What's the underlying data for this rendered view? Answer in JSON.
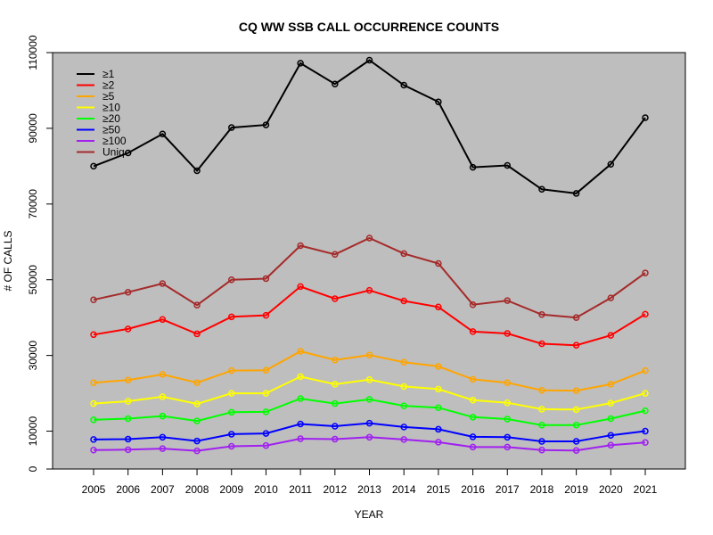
{
  "chart_data": {
    "type": "line",
    "title": "CQ WW SSB CALL OCCURRENCE COUNTS",
    "xlabel": "YEAR",
    "ylabel": "# OF CALLS",
    "x": [
      "2005",
      "2006",
      "2007",
      "2008",
      "2009",
      "2010",
      "2011",
      "2012",
      "2013",
      "2014",
      "2015",
      "2016",
      "2017",
      "2018",
      "2019",
      "2020",
      "2021"
    ],
    "ylim": [
      0,
      110000
    ],
    "yticks": [
      "0",
      "10000",
      "30000",
      "50000",
      "70000",
      "90000",
      "110000"
    ],
    "background": "#bebebe",
    "grid": false,
    "legend_position": "top-left",
    "series": [
      {
        "name": "≥1",
        "color": "#000000",
        "values": [
          80000,
          83500,
          88500,
          78800,
          90200,
          90900,
          107200,
          101700,
          108000,
          101400,
          97000,
          79700,
          80200,
          73900,
          72800,
          80500,
          92800
        ]
      },
      {
        "name": "≥2",
        "color": "#ff0000",
        "values": [
          35500,
          37000,
          39500,
          35700,
          40200,
          40600,
          48200,
          45000,
          47200,
          44400,
          42800,
          36300,
          35800,
          33100,
          32700,
          35300,
          40900
        ]
      },
      {
        "name": "≥5",
        "color": "#ffa500",
        "values": [
          22800,
          23500,
          25000,
          22800,
          26000,
          26100,
          31100,
          28800,
          30100,
          28200,
          27100,
          23700,
          22800,
          20800,
          20700,
          22400,
          26000
        ]
      },
      {
        "name": "≥10",
        "color": "#ffff00",
        "values": [
          17300,
          17900,
          19100,
          17200,
          20000,
          20000,
          24400,
          22400,
          23600,
          21800,
          21100,
          18200,
          17500,
          15800,
          15700,
          17400,
          20000
        ]
      },
      {
        "name": "≥20",
        "color": "#00ff00",
        "values": [
          13000,
          13300,
          14000,
          12700,
          15000,
          15100,
          18600,
          17300,
          18400,
          16700,
          16200,
          13700,
          13200,
          11600,
          11600,
          13300,
          15400
        ]
      },
      {
        "name": "≥50",
        "color": "#0000ff",
        "values": [
          7800,
          7900,
          8400,
          7400,
          9200,
          9400,
          11900,
          11300,
          12100,
          11100,
          10500,
          8500,
          8400,
          7300,
          7300,
          8900,
          10000
        ]
      },
      {
        "name": "≥100",
        "color": "#a020f0",
        "values": [
          5000,
          5100,
          5400,
          4800,
          6000,
          6200,
          8000,
          7900,
          8400,
          7800,
          7100,
          5800,
          5800,
          5000,
          4900,
          6300,
          7000
        ]
      },
      {
        "name": "Uniq",
        "color": "#a52a2a",
        "values": [
          44700,
          46700,
          49000,
          43300,
          50000,
          50300,
          59000,
          56700,
          61000,
          56900,
          54300,
          43400,
          44500,
          40800,
          40000,
          45200,
          51800
        ]
      }
    ]
  }
}
